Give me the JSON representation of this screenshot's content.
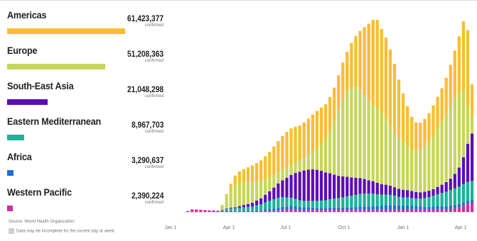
{
  "legend": {
    "regions": [
      {
        "name": "Americas",
        "value": "61,423,377",
        "sub": "confirmed",
        "color": "#FBBC35",
        "share": 1.0
      },
      {
        "name": "Europe",
        "value": "51,208,363",
        "sub": "confirmed",
        "color": "#C5D65B",
        "share": 0.834
      },
      {
        "name": "South-East Asia",
        "value": "21,048,298",
        "sub": "confirmed",
        "color": "#5C0DB5",
        "share": 0.343
      },
      {
        "name": "Eastern Mediterranean",
        "value": "8,967,703",
        "sub": "confirmed",
        "color": "#1DB298",
        "share": 0.146
      },
      {
        "name": "Africa",
        "value": "3,290,637",
        "sub": "confirmed",
        "color": "#1E6FD1",
        "share": 0.054
      },
      {
        "name": "Western Pacific",
        "value": "2,390,224",
        "sub": "confirmed",
        "color": "#D42CA0",
        "share": 0.039
      }
    ],
    "source": "Source: World Health Organization",
    "note": "Data may be incomplete for the current day or week."
  },
  "chart_data": {
    "type": "bar",
    "stacked": true,
    "x_tick_labels": [
      "Jan 1",
      "Apr 1",
      "Jul 1",
      "Oct 1",
      "Jan 1",
      "Apr 1"
    ],
    "x_unit": "weekly new confirmed cases (approximate scale)",
    "grid": false,
    "legend_placement": "left",
    "series": [
      {
        "name": "Western Pacific",
        "color": "#D42CA0",
        "values": [
          0.3,
          0.8,
          0.8,
          0.7,
          0.6,
          0.5,
          0.5,
          0.4,
          0.4,
          0.4,
          0.4,
          0.3,
          0.3,
          0.3,
          0.3,
          0.3,
          0.3,
          0.3,
          0.4,
          0.4,
          0.4,
          0.5,
          0.6,
          0.6,
          0.7,
          0.6,
          0.5,
          0.5,
          0.6,
          0.6,
          0.6,
          0.6,
          0.6,
          0.6,
          0.6,
          0.6,
          0.6,
          0.6,
          0.6,
          0.6,
          0.6,
          0.6,
          0.6,
          0.6,
          0.6,
          0.6,
          0.6,
          0.6,
          0.6,
          0.6,
          0.7,
          0.8,
          0.8,
          0.7,
          0.7,
          0.7,
          0.7,
          0.8,
          0.9,
          0.9,
          0.9,
          1.0,
          1.2,
          1.5,
          2.0,
          2.5,
          2.8
        ]
      },
      {
        "name": "Africa",
        "color": "#1E6FD1",
        "values": [
          0,
          0,
          0,
          0,
          0,
          0,
          0,
          0,
          0,
          0.1,
          0.1,
          0.1,
          0.1,
          0.2,
          0.2,
          0.2,
          0.3,
          0.3,
          0.4,
          0.5,
          0.6,
          0.8,
          1.0,
          1.1,
          1.2,
          1.2,
          1.1,
          1.0,
          0.9,
          0.8,
          0.7,
          0.7,
          0.7,
          0.8,
          0.8,
          0.8,
          0.8,
          0.9,
          0.9,
          1.0,
          1.1,
          1.1,
          1.1,
          1.2,
          1.2,
          1.3,
          1.5,
          1.6,
          1.5,
          1.4,
          1.3,
          1.3,
          1.2,
          1.1,
          1.0,
          0.9,
          0.9,
          0.9,
          0.9,
          0.9,
          0.9,
          0.9,
          1.0,
          1.0,
          1.0,
          1.0,
          1.0
        ]
      },
      {
        "name": "Eastern Mediterranean",
        "color": "#1DB298",
        "values": [
          0,
          0,
          0,
          0,
          0,
          0,
          0,
          0,
          0.3,
          0.5,
          0.7,
          0.8,
          0.9,
          1.0,
          1.1,
          1.2,
          1.5,
          1.8,
          2.2,
          2.6,
          3.0,
          3.2,
          3.1,
          2.9,
          2.6,
          2.3,
          2.1,
          2.0,
          2.0,
          2.1,
          2.2,
          2.3,
          2.4,
          2.6,
          2.8,
          3.0,
          3.2,
          3.4,
          3.6,
          3.8,
          4.0,
          4.1,
          4.1,
          4.0,
          3.8,
          3.6,
          3.4,
          3.2,
          3.0,
          2.8,
          2.6,
          2.5,
          2.4,
          2.4,
          2.5,
          2.8,
          3.1,
          3.4,
          3.8,
          4.2,
          4.6,
          5.0,
          5.3,
          5.5,
          5.8,
          6.0,
          6.0
        ]
      },
      {
        "name": "South-East Asia",
        "color": "#5C0DB5",
        "values": [
          0,
          0,
          0,
          0,
          0,
          0,
          0,
          0,
          0,
          0.1,
          0.2,
          0.3,
          0.5,
          0.7,
          0.9,
          1.2,
          1.5,
          1.9,
          2.4,
          3.0,
          3.7,
          4.5,
          5.3,
          6.2,
          7.2,
          8.2,
          9.0,
          9.6,
          9.9,
          10.0,
          9.8,
          9.4,
          8.8,
          8.2,
          7.6,
          7.0,
          6.6,
          6.2,
          5.8,
          5.4,
          5.0,
          4.6,
          4.2,
          3.9,
          3.6,
          3.3,
          3.1,
          2.9,
          2.7,
          2.5,
          2.4,
          2.3,
          2.2,
          2.1,
          2.0,
          2.0,
          2.0,
          2.1,
          2.3,
          2.6,
          3.0,
          3.6,
          4.5,
          6.0,
          8.5,
          12.0,
          15.0
        ]
      },
      {
        "name": "Europe",
        "color": "#C5D65B",
        "values": [
          0,
          0,
          0,
          0,
          0,
          0,
          0,
          0,
          1.5,
          4.0,
          6.0,
          7.2,
          7.5,
          7.3,
          7.0,
          6.6,
          6.0,
          5.5,
          5.0,
          4.5,
          4.0,
          3.6,
          3.4,
          3.3,
          3.2,
          3.3,
          3.6,
          4.0,
          4.6,
          5.5,
          6.8,
          8.5,
          10.5,
          13.5,
          17.0,
          21.0,
          24.5,
          27.0,
          28.5,
          28.8,
          28.0,
          26.5,
          25.0,
          24.0,
          23.5,
          22.5,
          21.0,
          19.0,
          17.5,
          16.0,
          15.0,
          14.0,
          13.0,
          13.0,
          13.5,
          14.5,
          15.5,
          17.0,
          18.5,
          20.0,
          21.5,
          23.0,
          24.0,
          23.5,
          21.0,
          12.0,
          5.5
        ]
      },
      {
        "name": "Americas",
        "color": "#FBBC35",
        "values": [
          0,
          0,
          0,
          0,
          0,
          0,
          0,
          0,
          0,
          0.5,
          1.5,
          2.8,
          3.5,
          4.0,
          4.6,
          5.2,
          5.8,
          6.5,
          7.2,
          8.0,
          9.0,
          9.8,
          10.6,
          11.2,
          11.5,
          11.3,
          11.0,
          11.2,
          11.5,
          11.8,
          11.8,
          11.5,
          11.0,
          10.6,
          10.5,
          10.8,
          11.5,
          12.5,
          14.0,
          16.0,
          18.5,
          21.5,
          24.5,
          27.0,
          28.0,
          26.5,
          25.5,
          24.0,
          21.5,
          18.5,
          15.5,
          12.5,
          10.5,
          9.0,
          8.5,
          8.5,
          9.0,
          9.5,
          10.0,
          10.5,
          11.5,
          13.0,
          15.0,
          18.0,
          22.0,
          24.0,
          10.0
        ]
      }
    ]
  }
}
